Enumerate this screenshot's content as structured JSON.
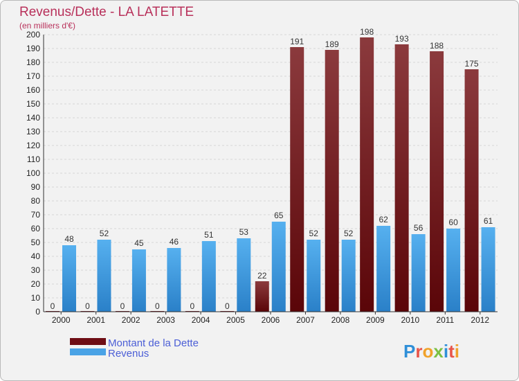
{
  "title": "Revenus/Dette - LA LATETTE",
  "subtitle": "(en milliers d'€)",
  "logo": "Proxiti",
  "colors": {
    "debt": "#6e0d14",
    "debt_light": "#8b3a3d",
    "revenue": "#4aa3e6",
    "revenue_dark": "#2a80c8",
    "title": "#b8305a",
    "legend_text": "#4b5ed6"
  },
  "chart_data": {
    "type": "bar",
    "title": "Revenus/Dette - LA LATETTE",
    "subtitle": "(en milliers d'€)",
    "xlabel": "",
    "ylabel": "",
    "ylim": [
      0,
      200
    ],
    "y_ticks": [
      0,
      10,
      20,
      30,
      40,
      50,
      60,
      70,
      80,
      90,
      100,
      110,
      120,
      130,
      140,
      150,
      160,
      170,
      180,
      190,
      200
    ],
    "grid": true,
    "legend_position": "bottom-left",
    "categories": [
      "2000",
      "2001",
      "2002",
      "2003",
      "2004",
      "2005",
      "2006",
      "2007",
      "2008",
      "2009",
      "2010",
      "2011",
      "2012"
    ],
    "series": [
      {
        "name": "Montant de la Dette",
        "values": [
          0,
          0,
          0,
          0,
          0,
          0,
          22,
          191,
          189,
          198,
          193,
          188,
          175
        ]
      },
      {
        "name": "Revenus",
        "values": [
          48,
          52,
          45,
          46,
          51,
          53,
          65,
          52,
          52,
          62,
          56,
          60,
          61
        ]
      }
    ]
  }
}
